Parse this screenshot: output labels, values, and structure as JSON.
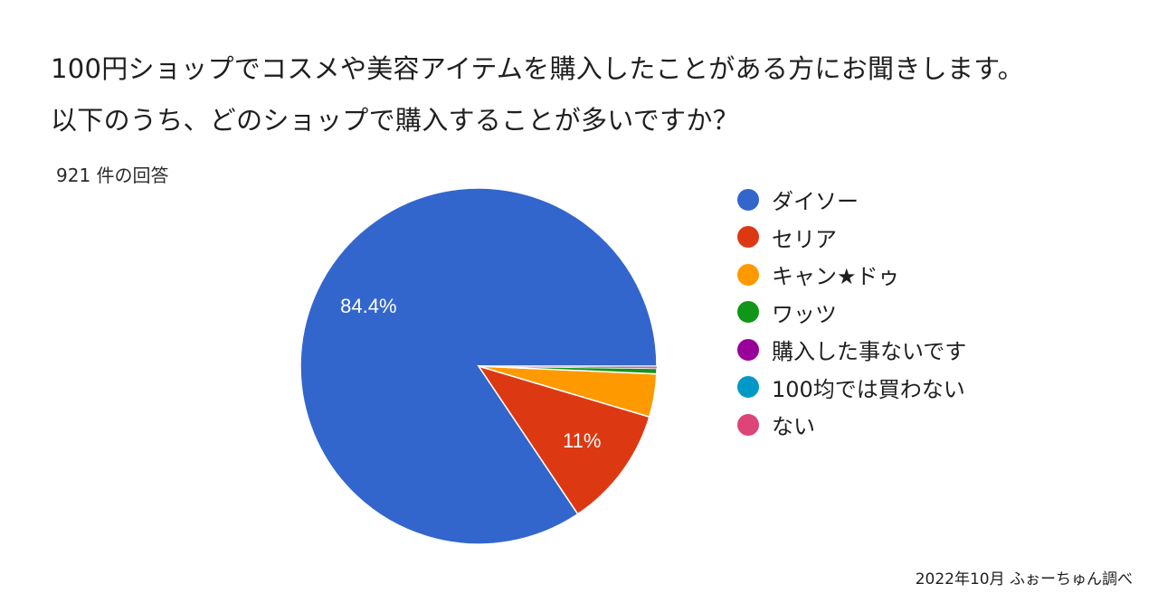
{
  "header": {
    "title_line1": "100円ショップでコスメや美容アイテムを購入したことがある方にお聞きします。",
    "title_line2": "以下のうち、どのショップで購入することが多いですか？",
    "responses": "921 件の回答"
  },
  "chart_data": {
    "type": "pie",
    "title": "100円ショップでコスメや美容アイテムを購入したことがある方にお聞きします。以下のうち、どのショップで購入することが多いですか？",
    "legend_position": "right",
    "categories": [
      "ダイソー",
      "セリア",
      "キャン★ドゥ",
      "ワッツ",
      "購入した事ないです",
      "100均では買わない",
      "ない"
    ],
    "values": [
      84.4,
      11.0,
      3.9,
      0.5,
      0.1,
      0.05,
      0.05
    ],
    "data_labels": [
      "84.4%",
      "11%",
      "",
      "",
      "",
      "",
      ""
    ],
    "colors": [
      "#3366cc",
      "#dc3912",
      "#ff9900",
      "#109618",
      "#990099",
      "#0099c6",
      "#dd4477"
    ]
  },
  "footer": {
    "credit": "2022年10月 ふぉーちゅん調べ"
  }
}
